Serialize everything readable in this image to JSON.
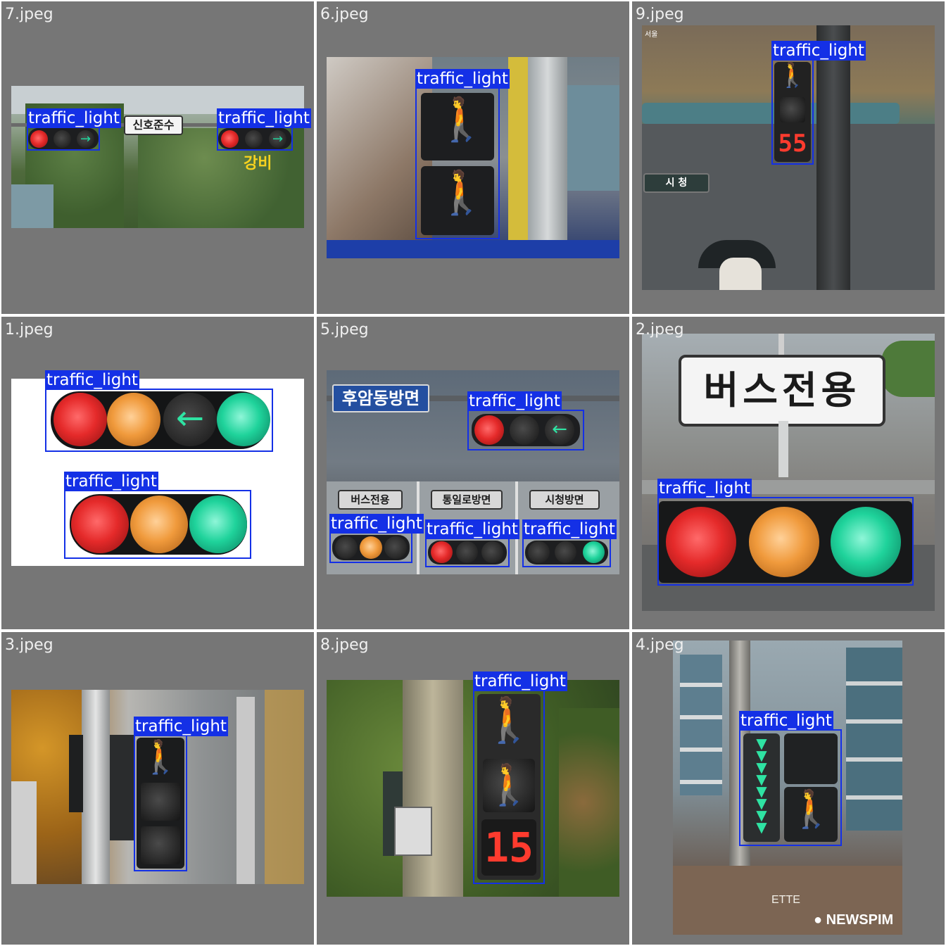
{
  "colors": {
    "panel": "#767676",
    "box": "#1430e6",
    "label_text": "#ffffff",
    "title_text": "#f0f0f0"
  },
  "cells": [
    {
      "title": "7.jpeg",
      "sign_text": "신호준수",
      "overlay_text": "강비",
      "boxes": [
        "traffic_light",
        "traffic_light"
      ]
    },
    {
      "title": "6.jpeg",
      "boxes": [
        "traffic_light"
      ]
    },
    {
      "title": "9.jpeg",
      "corner_text": "서울",
      "sign_text": "시 청",
      "countdown": "55",
      "boxes": [
        "traffic_light"
      ]
    },
    {
      "title": "1.jpeg",
      "boxes": [
        "traffic_light",
        "traffic_light"
      ]
    },
    {
      "title": "5.jpeg",
      "blue_sign": "후암동방면",
      "signs": [
        "버스전용",
        "통일로방면",
        "시청방면"
      ],
      "boxes": [
        "traffic_light",
        "traffic_light",
        "traffic_light",
        "traffic_light"
      ]
    },
    {
      "title": "2.jpeg",
      "sign_text": "버스전용",
      "boxes": [
        "traffic_light"
      ]
    },
    {
      "title": "3.jpeg",
      "boxes": [
        "traffic_light"
      ]
    },
    {
      "title": "8.jpeg",
      "countdown": "15",
      "boxes": [
        "traffic_light"
      ]
    },
    {
      "title": "4.jpeg",
      "watermark": "NEWSPIM",
      "store_text": "ETTE",
      "boxes": [
        "traffic_light"
      ]
    }
  ]
}
